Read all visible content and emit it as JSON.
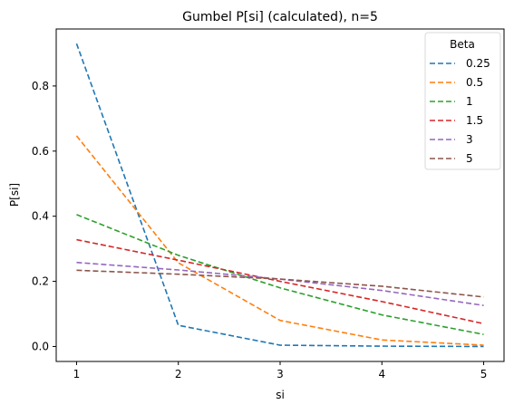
{
  "chart_data": {
    "type": "line",
    "title": "Gumbel P[si] (calculated), n=5",
    "xlabel": "si",
    "ylabel": "P[si]",
    "x": [
      1,
      2,
      3,
      4,
      5
    ],
    "xticks": [
      "1",
      "2",
      "3",
      "4",
      "5"
    ],
    "yticks": [
      "0.0",
      "0.2",
      "0.4",
      "0.6",
      "0.8"
    ],
    "ytick_values": [
      0.0,
      0.2,
      0.4,
      0.6,
      0.8
    ],
    "xlim": [
      0.8,
      5.2
    ],
    "ylim": [
      -0.046,
      0.975
    ],
    "grid": false,
    "line_style": "dashed",
    "legend": {
      "title": "Beta",
      "placement": "top-right"
    },
    "series": [
      {
        "name": "0.25",
        "color": "#1f77b4",
        "values": [
          0.93,
          0.065,
          0.004,
          0.001,
          0.0
        ]
      },
      {
        "name": "0.5",
        "color": "#ff7f0e",
        "values": [
          0.647,
          0.257,
          0.08,
          0.02,
          0.004
        ]
      },
      {
        "name": "1",
        "color": "#2ca02c",
        "values": [
          0.405,
          0.28,
          0.18,
          0.097,
          0.037
        ]
      },
      {
        "name": "1.5",
        "color": "#d62728",
        "values": [
          0.328,
          0.265,
          0.2,
          0.138,
          0.07
        ]
      },
      {
        "name": "3",
        "color": "#9467bd",
        "values": [
          0.258,
          0.235,
          0.207,
          0.172,
          0.126
        ]
      },
      {
        "name": "5",
        "color": "#8c564b",
        "values": [
          0.234,
          0.222,
          0.207,
          0.185,
          0.152
        ]
      }
    ]
  }
}
